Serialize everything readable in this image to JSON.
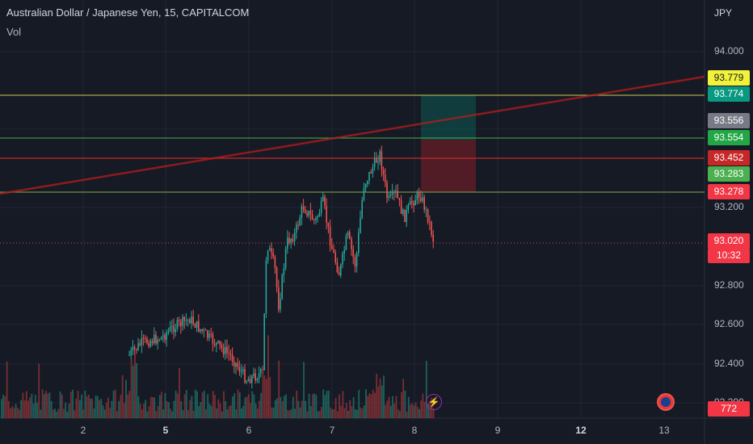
{
  "header": {
    "symbol_title": "Australian Dollar / Japanese Yen, 15, CAPITALCOM",
    "indicator": "Vol"
  },
  "axis": {
    "currency": "JPY"
  },
  "y_ticks": [
    {
      "label": "94.000",
      "price": 94.0
    },
    {
      "label": "93.200",
      "price": 93.2
    },
    {
      "label": "92.800",
      "price": 92.8
    },
    {
      "label": "92.600",
      "price": 92.6
    },
    {
      "label": "92.400",
      "price": 92.4
    },
    {
      "label": "92.200",
      "price": 92.2
    }
  ],
  "x_ticks": [
    {
      "label": "2",
      "bold": false
    },
    {
      "label": "5",
      "bold": true
    },
    {
      "label": "6",
      "bold": false
    },
    {
      "label": "7",
      "bold": false
    },
    {
      "label": "8",
      "bold": false
    },
    {
      "label": "9",
      "bold": false
    },
    {
      "label": "12",
      "bold": true
    },
    {
      "label": "13",
      "bold": false
    }
  ],
  "price_labels": [
    {
      "value": "93.779",
      "bg": "#f2f23a",
      "fg": "#131722"
    },
    {
      "value": "93.774",
      "bg": "#089981",
      "fg": "#ffffff"
    },
    {
      "value": "93.556",
      "bg": "#787b86",
      "fg": "#ffffff"
    },
    {
      "value": "93.554",
      "bg": "#22a646",
      "fg": "#ffffff"
    },
    {
      "value": "93.452",
      "bg": "#c62828",
      "fg": "#ffffff"
    },
    {
      "value": "93.283",
      "bg": "#4caf50",
      "fg": "#ffffff"
    },
    {
      "value": "93.278",
      "bg": "#f23645",
      "fg": "#ffffff"
    },
    {
      "value": "93.020",
      "bg": "#f23645",
      "fg": "#ffffff"
    },
    {
      "value": "10:32",
      "bg": "#f23645",
      "fg": "#ffffff"
    },
    {
      "value": "772",
      "bg": "#f23645",
      "fg": "#ffffff"
    }
  ],
  "colors": {
    "up": "#26a69a",
    "down": "#ef5350",
    "grid": "#232735",
    "bg": "#161a25"
  },
  "icons": {
    "event": "lightning-icon",
    "flag": "australia-flag-icon"
  }
}
